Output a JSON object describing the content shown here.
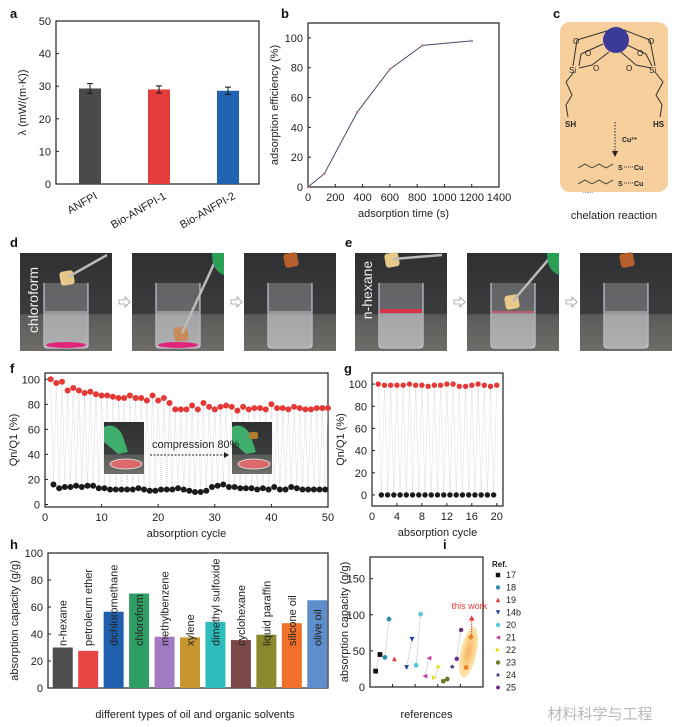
{
  "panel_labels": {
    "a": "a",
    "b": "b",
    "c": "c",
    "d": "d",
    "e": "e",
    "f": "f",
    "g": "g",
    "h": "h",
    "i": "i"
  },
  "chart_data": [
    {
      "id": "a",
      "type": "bar",
      "categories": [
        "ANFPI",
        "Bio-ANFPI-1",
        "Bio-ANFPI-2"
      ],
      "values": [
        29.3,
        29.0,
        28.6
      ],
      "errors": [
        1.5,
        1.1,
        1.1
      ],
      "colors": [
        "#4a4a4a",
        "#e43d3d",
        "#1f64b0"
      ],
      "xlabel": "",
      "ylabel": "λ  (mW/(m·K))",
      "ylim": [
        0,
        50
      ],
      "yticks": [
        0,
        10,
        20,
        30,
        40,
        50
      ],
      "grid": false
    },
    {
      "id": "b",
      "type": "line",
      "x": [
        0,
        120,
        360,
        600,
        840,
        1200
      ],
      "y": [
        0,
        9,
        50,
        79,
        95,
        98
      ],
      "xlabel": "adsorption time (s)",
      "ylabel": "adsorption efficiency (%)",
      "xlim": [
        0,
        1400
      ],
      "ylim": [
        0,
        110
      ],
      "xticks": [
        0,
        200,
        400,
        600,
        800,
        1000,
        1200,
        1400
      ],
      "yticks": [
        0,
        20,
        40,
        60,
        80,
        100
      ],
      "color": "#4a4a6a",
      "grid": false
    },
    {
      "id": "f",
      "type": "scatter",
      "series": [
        {
          "x_start": 1,
          "x_step": 1,
          "values": [
            100,
            97,
            98,
            91,
            93,
            91,
            89,
            90,
            88,
            87,
            87,
            86,
            85,
            85,
            87,
            85,
            85,
            83,
            87,
            83,
            85,
            81,
            76,
            76,
            76,
            79,
            76,
            81,
            78,
            76,
            78,
            79,
            78,
            75,
            78,
            76,
            77,
            77,
            76,
            80,
            77,
            77,
            76,
            78,
            77,
            76,
            76,
            77,
            77,
            77
          ],
          "color": "#e53935"
        },
        {
          "x_start": 1.5,
          "x_step": 1,
          "values": [
            16,
            13,
            14,
            14,
            15,
            14,
            15,
            15,
            13,
            13,
            12,
            12,
            12,
            12,
            12,
            13,
            12,
            11,
            11,
            12,
            12,
            12,
            13,
            12,
            11,
            10,
            10,
            11,
            14,
            15,
            16,
            14,
            14,
            13,
            13,
            13,
            12,
            13,
            12,
            14,
            12,
            12,
            14,
            13,
            12,
            12,
            12,
            12,
            12
          ],
          "color": "#1a1a1a"
        }
      ],
      "xlabel": "absorption cycle",
      "ylabel": "Qn/Q1 (%)",
      "xlim": [
        0,
        50
      ],
      "ylim": [
        -2,
        105
      ],
      "xticks": [
        0,
        10,
        20,
        30,
        40,
        50
      ],
      "yticks": [
        0,
        20,
        40,
        60,
        80,
        100
      ],
      "annotation": "compression  80%",
      "grid": false
    },
    {
      "id": "g",
      "type": "scatter",
      "series": [
        {
          "x_start": 1,
          "x_step": 1,
          "values": [
            100,
            99,
            99,
            99,
            99,
            100,
            99,
            99,
            98,
            99,
            99,
            100,
            100,
            98,
            98,
            99,
            100,
            99,
            98,
            99
          ],
          "color": "#e53935"
        },
        {
          "x_start": 1.5,
          "x_step": 1,
          "values": [
            0,
            0,
            0,
            0,
            0,
            0,
            0,
            0,
            0,
            0,
            0,
            0,
            0,
            0,
            0,
            0,
            0,
            0,
            0
          ],
          "color": "#1a1a1a"
        }
      ],
      "xlabel": "absorption cycle",
      "ylabel": "Qn/Q1 (%)",
      "xlim": [
        0,
        21
      ],
      "ylim": [
        -10,
        110
      ],
      "xticks": [
        0,
        4,
        8,
        12,
        16,
        20
      ],
      "yticks": [
        0,
        20,
        40,
        60,
        80,
        100
      ],
      "grid": false
    },
    {
      "id": "h",
      "type": "bar",
      "categories": [
        "n-hexane",
        "petroleum ether",
        "dichloromethane",
        "chloroform",
        "methylbenzene",
        "xylene",
        "dimethyl sulfoxide",
        "cyclohexane",
        "liquid paraffin",
        "silicone oil",
        "olive oil"
      ],
      "values": [
        30,
        27.5,
        56.5,
        70,
        38,
        37.5,
        49,
        35.5,
        39.5,
        48,
        65
      ],
      "colors": [
        "#4d4d4d",
        "#e84545",
        "#1f5fae",
        "#2e9e64",
        "#a27cc2",
        "#c8962e",
        "#2dbdbd",
        "#7a4848",
        "#8a8a2c",
        "#f0702a",
        "#5e8fcc"
      ],
      "xlabel": "different types of oil and organic solvents",
      "ylabel": "absorption capacity (g/g)",
      "ylim": [
        0,
        100
      ],
      "yticks": [
        0,
        20,
        40,
        60,
        80,
        100
      ],
      "grid": false
    },
    {
      "id": "i",
      "type": "scatter",
      "xlabel": "references",
      "ylabel": "absorption capacity (g/g)",
      "ylim": [
        0,
        180
      ],
      "yticks": [
        0,
        50,
        100,
        150
      ],
      "legend_title": "Ref.",
      "legend_position": "right",
      "series": [
        {
          "name": "17",
          "marker": "square",
          "color": "#111111",
          "points": [
            [
              0.25,
              22
            ],
            [
              0.44,
              45
            ]
          ]
        },
        {
          "name": "18",
          "marker": "circle",
          "color": "#2b8fb2",
          "points": [
            [
              0.66,
              41
            ],
            [
              0.84,
              94
            ]
          ]
        },
        {
          "name": "19",
          "marker": "triangle-up",
          "color": "#e53935",
          "points": [
            [
              1.08,
              39
            ]
          ]
        },
        {
          "name": "14b",
          "marker": "triangle-down",
          "color": "#1f3f9f",
          "points": [
            [
              1.62,
              27
            ],
            [
              1.86,
              66
            ]
          ]
        },
        {
          "name": "20",
          "marker": "circle",
          "color": "#5cc8da",
          "points": [
            [
              2.04,
              30
            ],
            [
              2.24,
              101
            ]
          ]
        },
        {
          "name": "21",
          "marker": "triangle-left",
          "color": "#c23ea2",
          "points": [
            [
              2.43,
              15
            ],
            [
              2.61,
              40
            ]
          ]
        },
        {
          "name": "22",
          "marker": "triangle-right",
          "color": "#e6df22",
          "points": [
            [
              2.85,
              13
            ],
            [
              3.05,
              28
            ]
          ]
        },
        {
          "name": "23",
          "marker": "circle",
          "color": "#6b7a22",
          "points": [
            [
              3.24,
              8
            ],
            [
              3.42,
              11
            ]
          ]
        },
        {
          "name": "24",
          "marker": "star",
          "color": "#2a2a7a",
          "points": [
            [
              3.64,
              28
            ]
          ]
        },
        {
          "name": "25",
          "marker": "hexagon",
          "color": "#6a2a8a",
          "points": [
            [
              3.84,
              39
            ],
            [
              4.03,
              79
            ]
          ]
        }
      ],
      "this_work": {
        "label": "this work",
        "points": [
          [
            4.25,
            27
          ],
          [
            4.46,
            69
          ]
        ],
        "color": "#e53935"
      },
      "xlim": [
        0,
        5
      ]
    }
  ],
  "panel_c": {
    "center_atom": "",
    "atoms": [
      "O",
      "O",
      "O",
      "Si",
      "O",
      "O",
      "O",
      "O",
      "Si"
    ],
    "thiol_left": "SH",
    "thiol_right": "HS",
    "ion": "Cu²⁺",
    "bond1": {
      "s": "S",
      "cu": "Cu"
    },
    "bond2": {
      "s": "S",
      "cu": "Cu"
    },
    "ellipsis": "......",
    "caption": "chelation reaction",
    "bg_color": "#f7cf9c",
    "atom_color": "#3b3a96",
    "red": "#e5392d",
    "blue": "#2a6cb8"
  },
  "panel_d": {
    "solvent_label": "chloroform",
    "arrow_icon": "arrow-right-icon"
  },
  "panel_e": {
    "solvent_label": "n-hexane",
    "arrow_icon": "arrow-right-icon"
  },
  "watermark": "材料科学与工程"
}
